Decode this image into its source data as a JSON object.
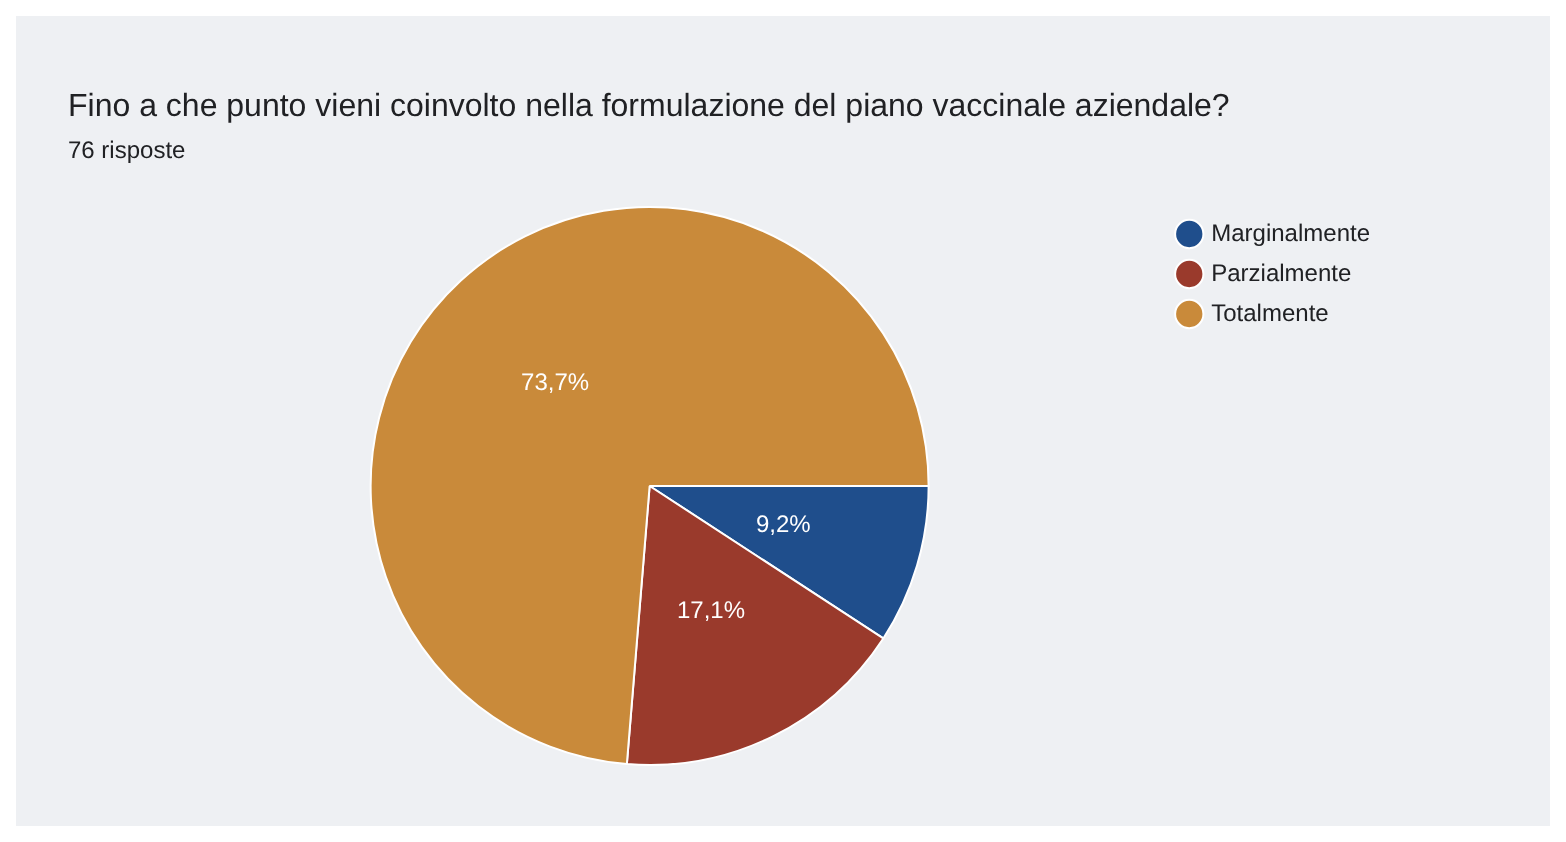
{
  "chart_data": {
    "type": "pie",
    "title": "Fino a che punto vieni coinvolto nella formulazione del piano vaccinale aziendale?",
    "subtitle": "76 risposte",
    "categories": [
      "Marginalmente",
      "Parzialmente",
      "Totalmente"
    ],
    "values": [
      9.2,
      17.1,
      73.7
    ],
    "value_labels": [
      "9,2%",
      "17,1%",
      "73,7%"
    ],
    "colors": [
      "#1f4e8c",
      "#9a3a2c",
      "#c98a3a"
    ],
    "legend": "top right"
  }
}
